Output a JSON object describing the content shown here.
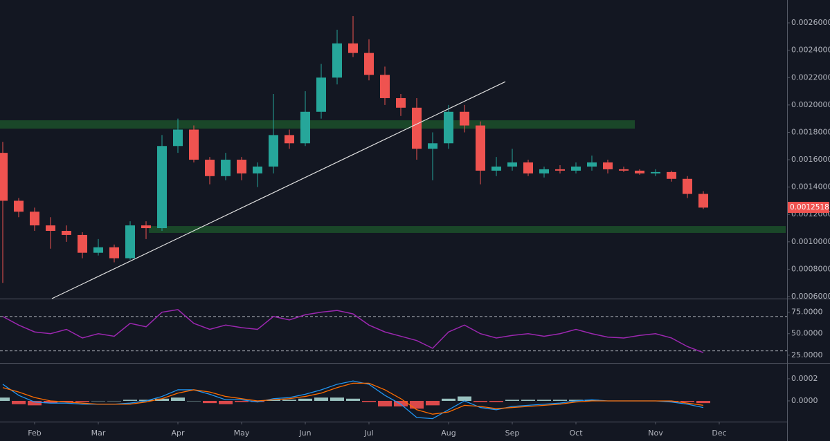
{
  "chart_data": [
    {
      "type": "candlestick",
      "series": [
        {
          "name": "Price",
          "up_color": "#26a69a",
          "down_color": "#ef5350",
          "open": [
            0.00165,
            0.0013,
            0.00122,
            0.00112,
            0.00108,
            0.00105,
            0.00092,
            0.00096,
            0.00088,
            0.00112,
            0.0011,
            0.0017,
            0.00182,
            0.0016,
            0.00148,
            0.0016,
            0.0015,
            0.00155,
            0.00178,
            0.00172,
            0.00195,
            0.0022,
            0.00245,
            0.00238,
            0.00222,
            0.00205,
            0.00198,
            0.00168,
            0.00172,
            0.00195,
            0.00185,
            0.00152,
            0.00155,
            0.00158,
            0.0015,
            0.00153,
            0.00152,
            0.00155,
            0.00158,
            0.00153,
            0.00152,
            0.0015,
            0.00151,
            0.00146,
            0.00135,
            null,
            null,
            null,
            null,
            null
          ],
          "high": [
            0.00173,
            0.00132,
            0.00125,
            0.00118,
            0.00112,
            0.00107,
            0.00102,
            0.00098,
            0.00115,
            0.00115,
            0.00178,
            0.0019,
            0.00185,
            0.00162,
            0.00165,
            0.00162,
            0.00158,
            0.00208,
            0.00182,
            0.0021,
            0.0023,
            0.00255,
            0.00265,
            0.00248,
            0.00228,
            0.00208,
            0.00205,
            0.0018,
            0.002,
            0.002,
            0.00188,
            0.00162,
            0.00168,
            0.0016,
            0.00155,
            0.00156,
            0.00158,
            0.00163,
            0.0016,
            0.00155,
            0.00153,
            0.00153,
            0.00152,
            0.00148,
            0.00137,
            null,
            null,
            null,
            null,
            null
          ],
          "low": [
            0.0007,
            0.00118,
            0.00108,
            0.00095,
            0.001,
            0.00088,
            0.0009,
            0.00085,
            0.00087,
            0.00102,
            0.00108,
            0.00165,
            0.00158,
            0.00142,
            0.00145,
            0.00145,
            0.0014,
            0.0015,
            0.00168,
            0.0017,
            0.0019,
            0.00215,
            0.00235,
            0.00218,
            0.002,
            0.00192,
            0.0016,
            0.00145,
            0.00168,
            0.0018,
            0.00142,
            0.00148,
            0.00152,
            0.00148,
            0.00147,
            0.0015,
            0.0015,
            0.00152,
            0.0015,
            0.00151,
            0.00149,
            0.00148,
            0.00144,
            0.00132,
            0.00124,
            null,
            null,
            null,
            null,
            null
          ],
          "close": [
            0.0013,
            0.00122,
            0.00112,
            0.00108,
            0.00105,
            0.00092,
            0.00096,
            0.00088,
            0.00112,
            0.0011,
            0.0017,
            0.00182,
            0.0016,
            0.00148,
            0.0016,
            0.0015,
            0.00155,
            0.00178,
            0.00172,
            0.00195,
            0.0022,
            0.00245,
            0.00238,
            0.00222,
            0.00205,
            0.00198,
            0.00168,
            0.00172,
            0.00195,
            0.00185,
            0.00152,
            0.00155,
            0.00158,
            0.0015,
            0.00153,
            0.00152,
            0.00155,
            0.00158,
            0.00153,
            0.00152,
            0.0015,
            0.00151,
            0.00146,
            0.00135,
            0.00125,
            null,
            null,
            null,
            null,
            null
          ]
        }
      ],
      "zones": [
        {
          "color": "#1c4d2a",
          "range": [
            0.001827,
            0.001888
          ]
        },
        {
          "color": "#1c4d2a",
          "range": [
            0.001065,
            0.001115
          ]
        }
      ],
      "trendline": {
        "color": "#e0e0e0",
        "values": [
          0.000585,
          0.00217
        ]
      },
      "last_price": 0.0012518,
      "ylim": [
        0.000585,
        0.002767
      ],
      "yticks": [
        {
          "value": 0.0006,
          "label": "0.0006000"
        },
        {
          "value": 0.0008,
          "label": "0.0008000"
        },
        {
          "value": 0.001,
          "label": "0.0010000"
        },
        {
          "value": 0.0012,
          "label": "0.0012000"
        },
        {
          "value": 0.0014,
          "label": "0.0014000"
        },
        {
          "value": 0.0016,
          "label": "0.0016000"
        },
        {
          "value": 0.0018,
          "label": "0.0018000"
        },
        {
          "value": 0.002,
          "label": "0.0020000"
        },
        {
          "value": 0.0022,
          "label": "0.0022000"
        },
        {
          "value": 0.0024,
          "label": "0.0024000"
        },
        {
          "value": 0.0026,
          "label": "0.0026000"
        }
      ]
    },
    {
      "type": "line",
      "series": [
        {
          "name": "RSI",
          "color": "#9c27b0",
          "values": [
            70,
            60,
            52,
            50,
            55,
            45,
            50,
            47,
            62,
            58,
            75,
            78,
            62,
            55,
            60,
            57,
            55,
            70,
            66,
            72,
            75,
            77,
            73,
            60,
            52,
            47,
            42,
            33,
            52,
            60,
            50,
            45,
            48,
            50,
            47,
            50,
            55,
            50,
            46,
            45,
            48,
            50,
            45,
            35,
            28,
            null,
            null,
            null,
            null,
            null
          ]
        }
      ],
      "levels": [
        70,
        30
      ],
      "ylim": [
        16,
        90
      ],
      "yticks": [
        {
          "value": 25,
          "label": "25.0000"
        },
        {
          "value": 50,
          "label": "50.0000"
        },
        {
          "value": 75,
          "label": "75.0000"
        }
      ]
    },
    {
      "type": "macd",
      "categories": [
        null,
        null,
        "Feb",
        null,
        null,
        null,
        "Mar",
        null,
        null,
        null,
        null,
        "Apr",
        null,
        null,
        null,
        "May",
        null,
        null,
        null,
        "Jun",
        null,
        null,
        null,
        "Jul",
        null,
        null,
        null,
        null,
        "Aug",
        null,
        null,
        null,
        "Sep",
        null,
        null,
        null,
        "Oct",
        null,
        null,
        null,
        null,
        "Nov",
        null,
        null,
        null,
        "Dec",
        null,
        null,
        null,
        null
      ],
      "series": [
        {
          "name": "MACD",
          "color": "#2196f3",
          "values": [
            0.00015,
            5e-05,
            -1e-05,
            -2e-05,
            -2e-05,
            -3e-05,
            -3e-05,
            -3e-05,
            -2e-05,
            0,
            4e-05,
            0.0001,
            0.0001,
            6e-05,
            1e-05,
            1e-05,
            -1e-05,
            2e-05,
            3e-05,
            6e-05,
            0.0001,
            0.00015,
            0.00018,
            0.00015,
            5e-05,
            -3e-05,
            -0.00015,
            -0.00016,
            -8e-05,
            0,
            -6e-05,
            -8e-05,
            -5e-05,
            -4e-05,
            -3e-05,
            -2e-05,
            0,
            1e-05,
            0,
            0,
            0,
            0,
            -1e-05,
            -3e-05,
            -6e-05,
            null,
            null,
            null,
            null,
            null
          ]
        },
        {
          "name": "Signal",
          "color": "#ff6d00",
          "values": [
            0.00012,
            8e-05,
            3e-05,
            0,
            -1e-05,
            -2e-05,
            -3e-05,
            -3e-05,
            -3e-05,
            -1e-05,
            2e-05,
            7e-05,
            0.0001,
            8e-05,
            4e-05,
            2e-05,
            0,
            1e-05,
            2e-05,
            4e-05,
            7e-05,
            0.00012,
            0.00016,
            0.00016,
            0.0001,
            2e-05,
            -8e-05,
            -0.00012,
            -0.0001,
            -4e-05,
            -5e-05,
            -7e-05,
            -6e-05,
            -5e-05,
            -4e-05,
            -3e-05,
            -1e-05,
            0,
            0,
            0,
            0,
            0,
            0,
            -2e-05,
            -4e-05,
            null,
            null,
            null,
            null,
            null
          ]
        },
        {
          "name": "Histogram",
          "up_color": "#b2dfdb",
          "down_color": "#ff5252",
          "values": [
            3e-05,
            -3e-05,
            -4e-05,
            -2e-05,
            -1e-05,
            -1e-05,
            0,
            0,
            1e-05,
            1e-05,
            2e-05,
            3e-05,
            0,
            -2e-05,
            -3e-05,
            -1e-05,
            -1e-05,
            1e-05,
            1e-05,
            2e-05,
            3e-05,
            3e-05,
            2e-05,
            -1e-05,
            -5e-05,
            -5e-05,
            -7e-05,
            -4e-05,
            2e-05,
            4e-05,
            -1e-05,
            -1e-05,
            1e-05,
            1e-05,
            1e-05,
            1e-05,
            1e-05,
            1e-05,
            0,
            0,
            0,
            0,
            -1e-05,
            -1e-05,
            -2e-05,
            null,
            null,
            null,
            null,
            null
          ]
        }
      ],
      "ylim": [
        -0.0001875,
        0.000337
      ],
      "yticks": [
        {
          "value": 0,
          "label": "0.0000"
        },
        {
          "value": 0.0002,
          "label": "0.0002"
        }
      ]
    }
  ]
}
